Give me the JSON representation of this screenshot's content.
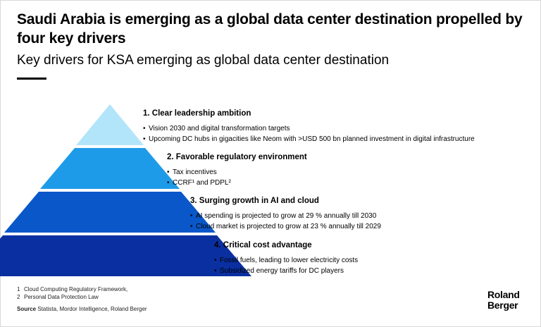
{
  "header": {
    "title": "Saudi Arabia is emerging as a global data center destination propelled by four key drivers",
    "subtitle": "Key drivers for KSA emerging as global data center destination"
  },
  "colors": {
    "tier1": "#b3e5fa",
    "tier2": "#1e9be8",
    "tier3": "#0a57c9",
    "tier4": "#0a2fa0"
  },
  "tiers": [
    {
      "title": "1. Clear leadership ambition",
      "bullets": [
        "Vision 2030 and digital transformation targets",
        "Upcoming DC hubs in gigacities like Neom with >USD 500 bn planned investment in digital infrastructure"
      ]
    },
    {
      "title": "2. Favorable regulatory environment",
      "bullets": [
        "Tax incentives",
        "CCRF¹ and PDPL²"
      ]
    },
    {
      "title": "3. Surging growth in AI and cloud",
      "bullets": [
        "AI spending is projected to grow at 29 % annually till 2030",
        "Cloud market is projected to grow at 23 % annually till 2029"
      ]
    },
    {
      "title": "4. Critical cost advantage",
      "bullets": [
        "Fossil fuels, leading to lower electricity costs",
        "Subsidized energy tariffs for DC players"
      ]
    }
  ],
  "footnotes": [
    {
      "num": "1",
      "text": "Cloud Computing Regulatory Framework,"
    },
    {
      "num": "2",
      "text": "Personal Data Protection Law"
    }
  ],
  "source": {
    "label": "Source",
    "text": "Statista, Mordor Intelligence, Roland Berger"
  },
  "logo": {
    "line1": "Roland",
    "line2": "Berger"
  }
}
